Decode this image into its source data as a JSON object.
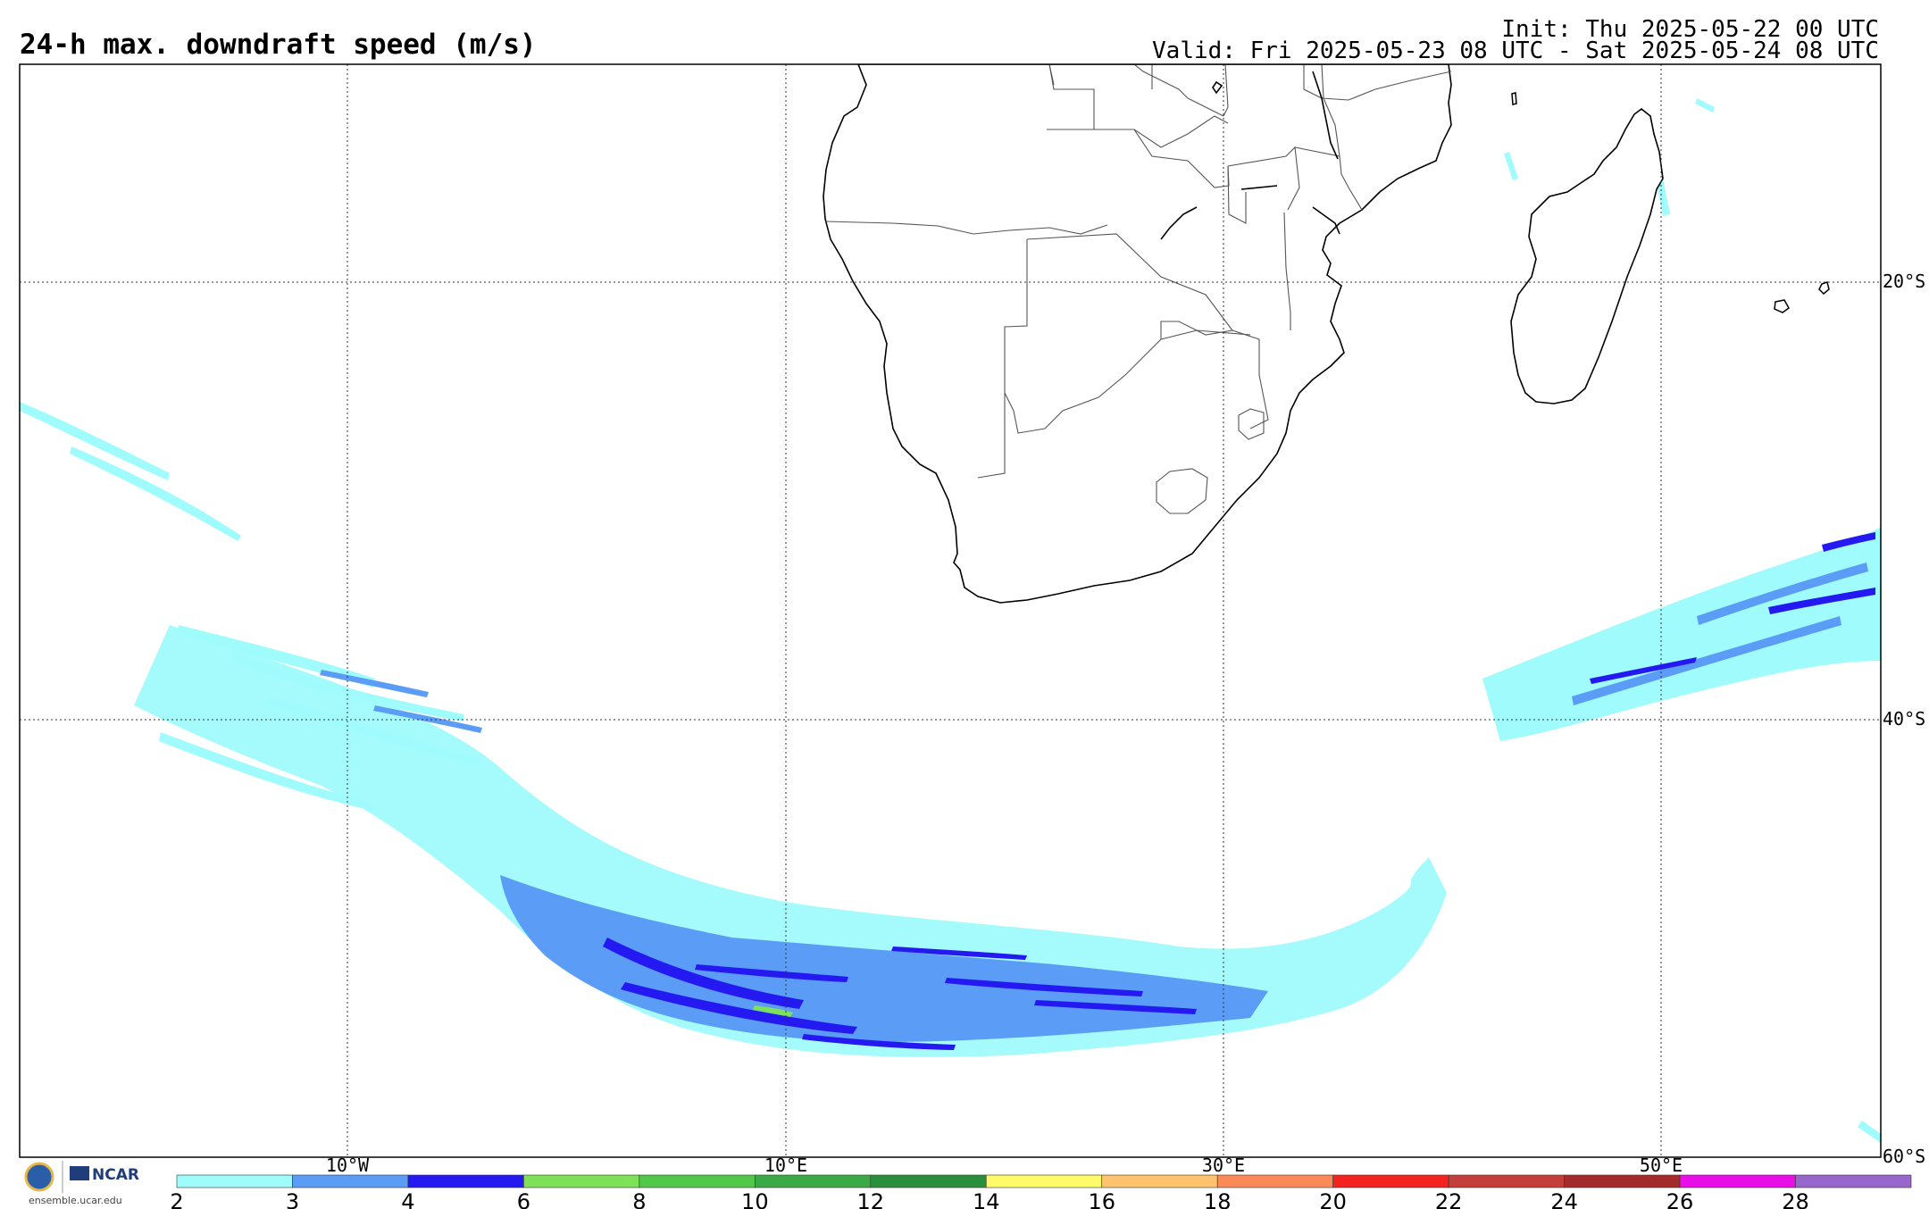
{
  "header": {
    "title": "24-h max. downdraft speed (m/s)",
    "init": "Init: Thu 2025-05-22 00 UTC",
    "valid": "Valid: Fri 2025-05-23 08 UTC - Sat 2025-05-24 08 UTC"
  },
  "grid": {
    "lat_labels": [
      "20°S",
      "40°S",
      "60°S"
    ],
    "lon_labels": [
      "10°W",
      "10°E",
      "30°E",
      "50°E"
    ]
  },
  "colorbar": {
    "ticks": [
      "2",
      "3",
      "4",
      "6",
      "8",
      "10",
      "12",
      "14",
      "16",
      "18",
      "20",
      "22",
      "24",
      "26",
      "28"
    ],
    "colors": [
      "#a0fbfc",
      "#5a9cf6",
      "#2419f1",
      "#7fe05a",
      "#52c84a",
      "#3aa946",
      "#2a8f3d",
      "#fefb68",
      "#fdc36e",
      "#fc8a58",
      "#f3241f",
      "#c43e3c",
      "#a32b2b",
      "#e80ee6",
      "#9966cc"
    ]
  },
  "legend_colors": {
    "light_cyan": "#a0fbfc",
    "medium_blue": "#5a9cf6",
    "dark_blue": "#2419f1",
    "green": "#7fe05a"
  },
  "branding": {
    "logo_text": "NCAR",
    "url": "ensemble.ucar.edu"
  }
}
